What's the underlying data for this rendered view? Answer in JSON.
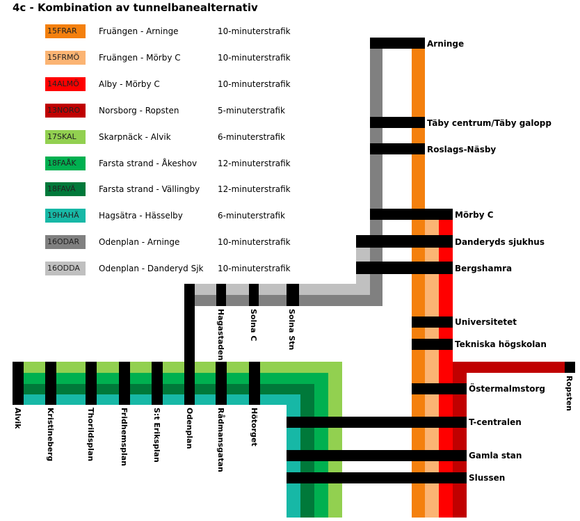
{
  "title": "4c - Kombination av tunnelbanealternativ",
  "legend": [
    {
      "code": "15FRAR",
      "route": "Fruängen - Arninge",
      "frequency": "10-minuterstrafik",
      "color": "#f4800e"
    },
    {
      "code": "15FRMÖ",
      "route": "Fruängen - Mörby C",
      "frequency": "10-minuterstrafik",
      "color": "#fbb473"
    },
    {
      "code": "14ALMÖ",
      "route": "Alby - Mörby C",
      "frequency": "10-minuterstrafik",
      "color": "#ff0000"
    },
    {
      "code": "13NORO",
      "route": "Norsborg - Ropsten",
      "frequency": "5-minuterstrafik",
      "color": "#c00000"
    },
    {
      "code": "17SKAL",
      "route": "Skarpnäck - Alvik",
      "frequency": "6-minuterstrafik",
      "color": "#92d050"
    },
    {
      "code": "18FAÅK",
      "route": "Farsta strand - Åkeshov",
      "frequency": "12-minuterstrafik",
      "color": "#00b050"
    },
    {
      "code": "18FAVÄ",
      "route": "Farsta strand - Vällingby",
      "frequency": "12-minuterstrafik",
      "color": "#00793a"
    },
    {
      "code": "19HAHÄ",
      "route": "Hagsätra - Hässelby",
      "frequency": "6-minuterstrafik",
      "color": "#17b8a6"
    },
    {
      "code": "16ODAR",
      "route": "Odenplan - Arninge",
      "frequency": "10-minuterstrafik",
      "color": "#808080"
    },
    {
      "code": "16ODDA",
      "route": "Odenplan - Danderyd Sjk",
      "frequency": "10-minuterstrafik",
      "color": "#c0c0c0"
    }
  ],
  "stations": {
    "arninge": "Arninge",
    "taby": "Täby centrum/Täby galopp",
    "roslags": "Roslags-Näsby",
    "morby": "Mörby C",
    "danderyd": "Danderyds sjukhus",
    "bergshamra": "Bergshamra",
    "universitetet": "Universitetet",
    "tekniska": "Tekniska högskolan",
    "ropsten": "Ropsten",
    "ostermalm": "Östermalmstorg",
    "tcentralen": "T-centralen",
    "gamlastan": "Gamla stan",
    "slussen": "Slussen",
    "hagastaden": "Hagastaden",
    "solnac": "Solna C",
    "solnastn": "Solna Stn",
    "alvik": "Alvik",
    "kristineberg": "Kristineberg",
    "thorildsplan": "Thorildsplan",
    "fridhemsplan": "Fridhemsplan",
    "steriksplan": "S:t Eriksplan",
    "odenplan": "Odenplan",
    "radmansgatan": "Rådmansgatan",
    "hotorget": "Hötorget"
  }
}
